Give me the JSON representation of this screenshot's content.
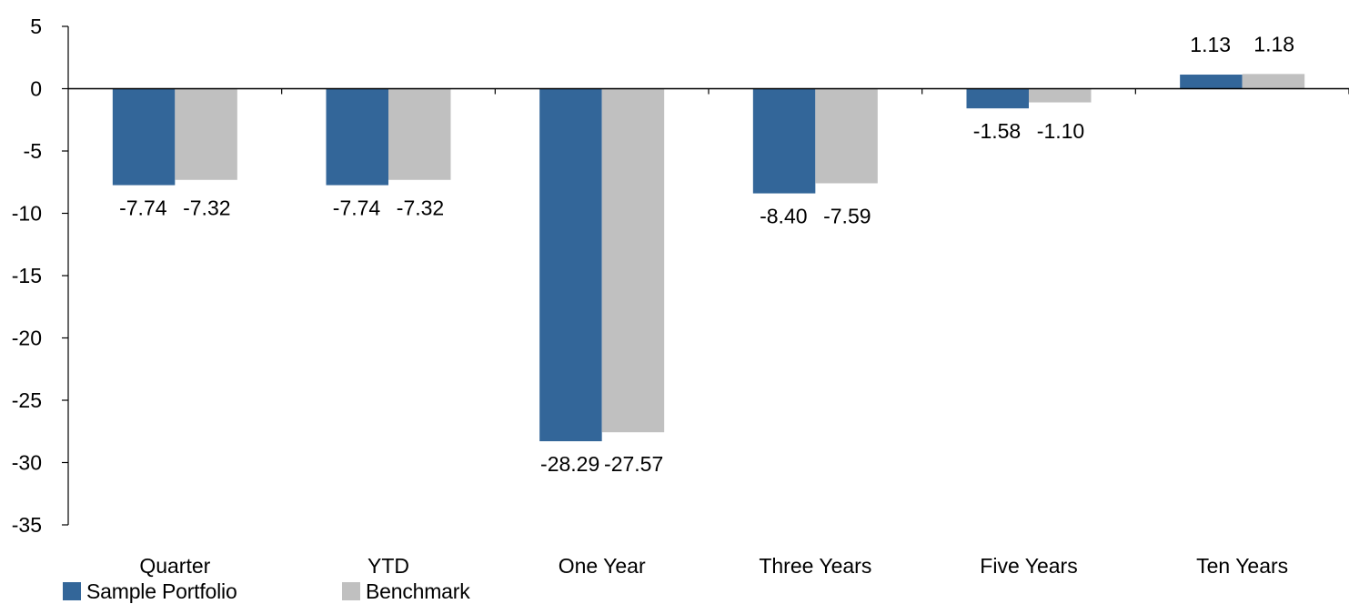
{
  "chart_data": {
    "type": "bar",
    "title": "",
    "xlabel": "",
    "ylabel": "",
    "categories": [
      "Quarter",
      "YTD",
      "One Year",
      "Three Years",
      "Five Years",
      "Ten Years"
    ],
    "series": [
      {
        "name": "Sample Portfolio",
        "color": "#336699",
        "values": [
          -7.74,
          -7.74,
          -28.29,
          -8.4,
          -1.58,
          1.13
        ],
        "labels": [
          "-7.74",
          "-7.74",
          "-28.29",
          "-8.40",
          "-1.58",
          "1.13"
        ]
      },
      {
        "name": "Benchmark",
        "color": "#C0C0C0",
        "values": [
          -7.32,
          -7.32,
          -27.57,
          -7.59,
          -1.1,
          1.18
        ],
        "labels": [
          "-7.32",
          "-7.32",
          "-27.57",
          "-7.59",
          "-1.10",
          "1.18"
        ]
      }
    ],
    "ylim": [
      -35,
      5
    ],
    "yticks": [
      5,
      0,
      -5,
      -10,
      -15,
      -20,
      -25,
      -30,
      -35
    ],
    "ytick_labels": [
      "5",
      "0",
      "-5",
      "-10",
      "-15",
      "-20",
      "-25",
      "-30",
      "-35"
    ],
    "grid": false,
    "legend_position": "bottom-left"
  }
}
